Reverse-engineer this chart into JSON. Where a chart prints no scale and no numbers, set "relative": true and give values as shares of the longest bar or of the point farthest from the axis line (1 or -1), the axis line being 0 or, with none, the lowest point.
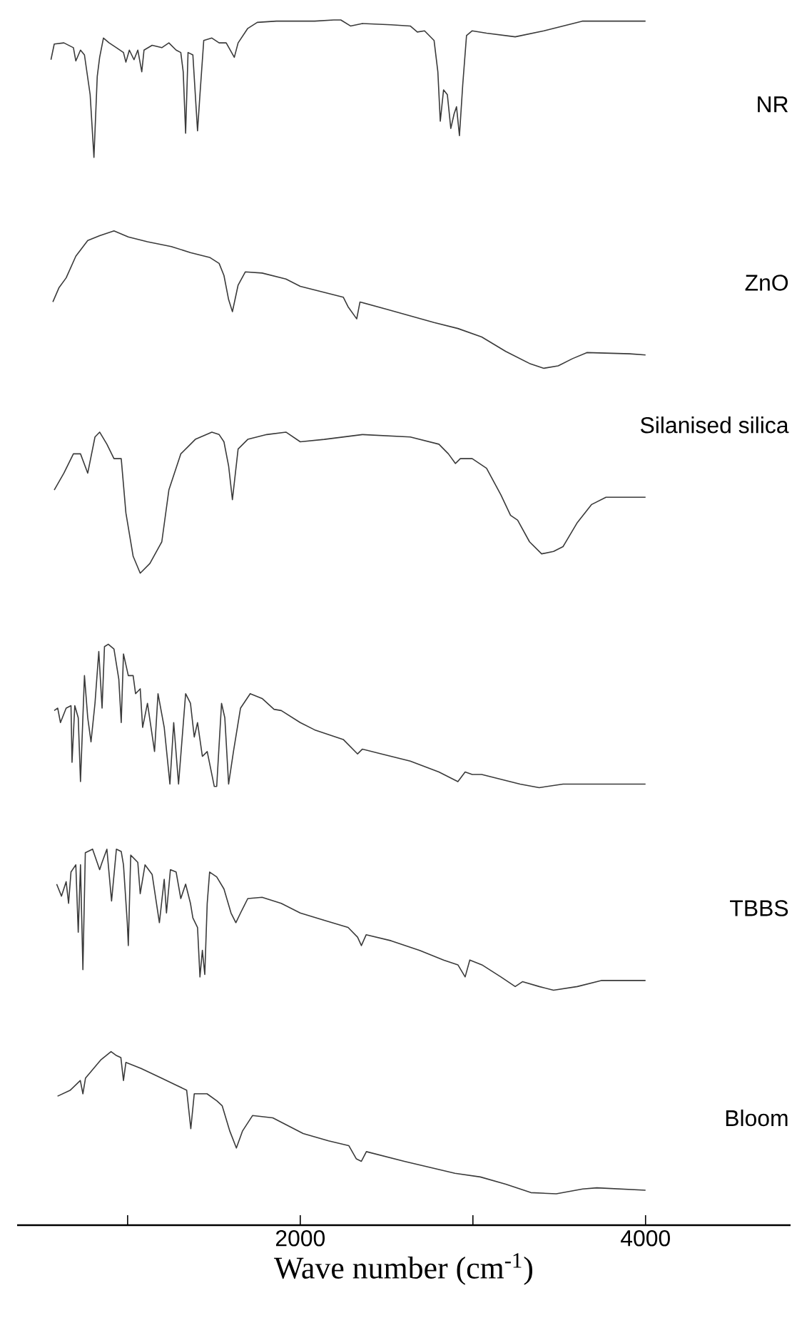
{
  "chart_data": {
    "type": "line",
    "relative": true,
    "xlabel": "Wave number (cm$^{-1}$)",
    "xlim": [
      360,
      4840
    ],
    "xticks": [
      {
        "value": 1000,
        "label": null
      },
      2000,
      {
        "value": 3000,
        "label": null
      },
      4000
    ],
    "series": [
      {
        "name": "NR",
        "color": "#3a3a3a",
        "x": [
          556,
          575,
          631,
          686,
          700,
          727,
          750,
          783,
          805,
          824,
          838,
          860,
          893,
          935,
          976,
          990,
          1010,
          1037,
          1059,
          1082,
          1095,
          1142,
          1198,
          1239,
          1281,
          1308,
          1322,
          1336,
          1350,
          1378,
          1405,
          1419,
          1441,
          1488,
          1530,
          1571,
          1618,
          1640,
          1696,
          1751,
          1862,
          1973,
          2083,
          2194,
          2235,
          2291,
          2360,
          2526,
          2637,
          2678,
          2720,
          2775,
          2797,
          2811,
          2830,
          2852,
          2872,
          2891,
          2905,
          2922,
          2941,
          2963,
          2996,
          3079,
          3245,
          3411,
          3633,
          3909,
          4000
        ],
        "values": [
          0.967,
          0.98,
          0.981,
          0.977,
          0.966,
          0.975,
          0.971,
          0.938,
          0.886,
          0.953,
          0.969,
          0.985,
          0.981,
          0.977,
          0.973,
          0.965,
          0.975,
          0.967,
          0.975,
          0.957,
          0.975,
          0.979,
          0.977,
          0.981,
          0.975,
          0.973,
          0.957,
          0.906,
          0.973,
          0.971,
          0.908,
          0.938,
          0.983,
          0.985,
          0.981,
          0.981,
          0.969,
          0.981,
          0.993,
          0.998,
          0.999,
          0.999,
          0.999,
          1.0,
          1.0,
          0.995,
          0.997,
          0.996,
          0.995,
          0.99,
          0.991,
          0.983,
          0.957,
          0.916,
          0.942,
          0.938,
          0.91,
          0.922,
          0.928,
          0.904,
          0.946,
          0.987,
          0.991,
          0.989,
          0.986,
          0.991,
          0.999,
          0.999,
          0.999
        ]
      },
      {
        "name": "ZnO",
        "color": "#3a3a3a",
        "x": [
          567,
          603,
          644,
          700,
          769,
          838,
          921,
          1004,
          1115,
          1253,
          1364,
          1475,
          1530,
          1558,
          1585,
          1607,
          1640,
          1682,
          1779,
          1917,
          2000,
          2139,
          2249,
          2277,
          2327,
          2346,
          2498,
          2775,
          2913,
          3051,
          3190,
          3328,
          3411,
          3494,
          3577,
          3660,
          3909,
          4000
        ],
        "values": [
          0.766,
          0.778,
          0.786,
          0.804,
          0.817,
          0.821,
          0.825,
          0.82,
          0.816,
          0.812,
          0.807,
          0.803,
          0.798,
          0.788,
          0.768,
          0.758,
          0.78,
          0.791,
          0.79,
          0.785,
          0.779,
          0.774,
          0.77,
          0.762,
          0.752,
          0.766,
          0.76,
          0.749,
          0.744,
          0.737,
          0.725,
          0.715,
          0.711,
          0.713,
          0.719,
          0.724,
          0.723,
          0.722
        ]
      },
      {
        "name": "Silanised silica",
        "color": "#3a3a3a",
        "x": [
          575,
          631,
          686,
          727,
          769,
          811,
          838,
          880,
          921,
          963,
          990,
          1032,
          1073,
          1129,
          1198,
          1239,
          1308,
          1392,
          1488,
          1530,
          1558,
          1585,
          1607,
          1640,
          1696,
          1806,
          1917,
          2000,
          2139,
          2360,
          2637,
          2803,
          2858,
          2899,
          2927,
          2996,
          3079,
          3162,
          3218,
          3259,
          3328,
          3398,
          3467,
          3522,
          3605,
          3688,
          3771,
          3909,
          4000
        ],
        "values": [
          0.61,
          0.624,
          0.64,
          0.64,
          0.624,
          0.654,
          0.658,
          0.648,
          0.636,
          0.636,
          0.591,
          0.555,
          0.541,
          0.549,
          0.567,
          0.61,
          0.64,
          0.652,
          0.658,
          0.656,
          0.65,
          0.63,
          0.602,
          0.644,
          0.652,
          0.656,
          0.658,
          0.65,
          0.652,
          0.656,
          0.654,
          0.648,
          0.64,
          0.632,
          0.636,
          0.636,
          0.628,
          0.606,
          0.589,
          0.585,
          0.567,
          0.557,
          0.559,
          0.563,
          0.583,
          0.598,
          0.604,
          0.604,
          0.604
        ]
      },
      {
        "color": "#3a3a3a",
        "x": [
          575,
          595,
          611,
          644,
          672,
          678,
          694,
          714,
          727,
          750,
          769,
          788,
          811,
          833,
          852,
          866,
          888,
          921,
          949,
          963,
          976,
          1004,
          1032,
          1046,
          1073,
          1087,
          1115,
          1156,
          1176,
          1212,
          1245,
          1267,
          1295,
          1336,
          1364,
          1386,
          1405,
          1433,
          1461,
          1502,
          1516,
          1544,
          1563,
          1585,
          1613,
          1654,
          1710,
          1779,
          1848,
          1890,
          2000,
          2083,
          2249,
          2332,
          2360,
          2471,
          2637,
          2803,
          2858,
          2913,
          2955,
          2996,
          3051,
          3162,
          3273,
          3384,
          3522,
          3688,
          3909,
          4000
        ],
        "values": [
          0.427,
          0.429,
          0.417,
          0.429,
          0.431,
          0.384,
          0.431,
          0.421,
          0.368,
          0.456,
          0.421,
          0.401,
          0.433,
          0.476,
          0.429,
          0.48,
          0.482,
          0.478,
          0.453,
          0.417,
          0.474,
          0.456,
          0.456,
          0.441,
          0.445,
          0.413,
          0.433,
          0.393,
          0.441,
          0.413,
          0.366,
          0.417,
          0.366,
          0.441,
          0.433,
          0.405,
          0.417,
          0.389,
          0.393,
          0.364,
          0.364,
          0.433,
          0.421,
          0.366,
          0.393,
          0.429,
          0.441,
          0.437,
          0.428,
          0.427,
          0.417,
          0.411,
          0.403,
          0.391,
          0.395,
          0.391,
          0.385,
          0.376,
          0.372,
          0.368,
          0.376,
          0.374,
          0.374,
          0.37,
          0.366,
          0.363,
          0.366,
          0.366,
          0.366,
          0.366
        ]
      },
      {
        "name": "TBBS",
        "color": "#3a3a3a",
        "x": [
          589,
          617,
          644,
          658,
          672,
          700,
          714,
          727,
          741,
          755,
          797,
          838,
          852,
          880,
          907,
          935,
          963,
          976,
          998,
          1004,
          1018,
          1059,
          1073,
          1101,
          1142,
          1184,
          1212,
          1225,
          1248,
          1281,
          1308,
          1336,
          1364,
          1378,
          1405,
          1419,
          1433,
          1447,
          1461,
          1475,
          1516,
          1558,
          1599,
          1627,
          1654,
          1696,
          1779,
          1890,
          2000,
          2139,
          2277,
          2332,
          2354,
          2382,
          2526,
          2692,
          2830,
          2913,
          2955,
          2982,
          3052,
          3162,
          3245,
          3287,
          3384,
          3467,
          3605,
          3743,
          3909,
          4000
        ],
        "values": [
          0.283,
          0.273,
          0.285,
          0.267,
          0.293,
          0.299,
          0.243,
          0.299,
          0.212,
          0.309,
          0.312,
          0.295,
          0.301,
          0.312,
          0.269,
          0.312,
          0.31,
          0.299,
          0.251,
          0.232,
          0.307,
          0.301,
          0.275,
          0.299,
          0.291,
          0.251,
          0.287,
          0.259,
          0.295,
          0.293,
          0.271,
          0.283,
          0.267,
          0.255,
          0.247,
          0.206,
          0.228,
          0.208,
          0.267,
          0.293,
          0.289,
          0.279,
          0.259,
          0.251,
          0.259,
          0.271,
          0.272,
          0.267,
          0.259,
          0.253,
          0.247,
          0.239,
          0.232,
          0.241,
          0.236,
          0.228,
          0.22,
          0.216,
          0.206,
          0.22,
          0.216,
          0.206,
          0.198,
          0.202,
          0.198,
          0.195,
          0.198,
          0.203,
          0.203,
          0.203
        ]
      },
      {
        "name": "Bloom",
        "color": "#3a3a3a",
        "x": [
          594,
          668,
          726,
          741,
          756,
          844,
          904,
          932,
          961,
          976,
          990,
          1078,
          1196,
          1284,
          1342,
          1366,
          1386,
          1460,
          1518,
          1548,
          1592,
          1630,
          1665,
          1724,
          1841,
          2017,
          2164,
          2281,
          2325,
          2354,
          2383,
          2603,
          2896,
          3043,
          3190,
          3336,
          3483,
          3636,
          3718,
          4000
        ],
        "values": [
          0.107,
          0.112,
          0.12,
          0.109,
          0.122,
          0.137,
          0.144,
          0.141,
          0.139,
          0.12,
          0.135,
          0.13,
          0.122,
          0.116,
          0.112,
          0.08,
          0.109,
          0.109,
          0.103,
          0.099,
          0.078,
          0.064,
          0.078,
          0.091,
          0.089,
          0.076,
          0.07,
          0.066,
          0.055,
          0.053,
          0.061,
          0.053,
          0.043,
          0.04,
          0.034,
          0.027,
          0.026,
          0.03,
          0.031,
          0.029
        ]
      }
    ]
  }
}
